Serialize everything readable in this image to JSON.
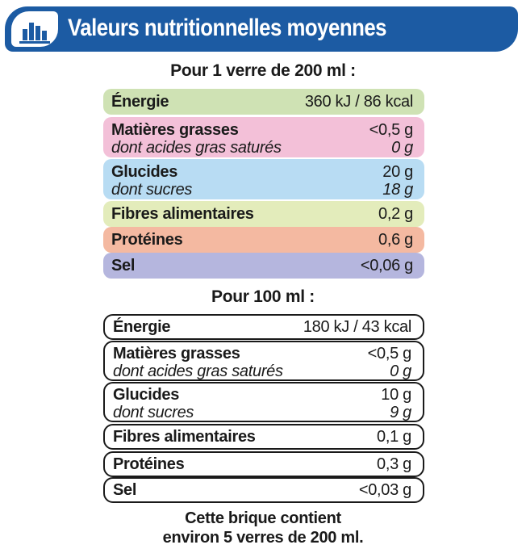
{
  "colors": {
    "header_blue": "#1c5ba3",
    "energie": "#cfe2b4",
    "matieres_grasses": "#f3c0d8",
    "glucides": "#b8dcf3",
    "fibres": "#e3ecbb",
    "proteines": "#f4b9a1",
    "sel": "#b5b6de"
  },
  "header": {
    "icon": "bar-chart-icon",
    "title": "Valeurs nutritionnelles moyennes"
  },
  "per_glass": {
    "title": "Pour 1 verre de 200 ml :",
    "rows": [
      {
        "label": "Énergie",
        "value": "360 kJ / 86 kcal"
      },
      {
        "label": "Matières grasses",
        "value": "<0,5 g",
        "sublabel": "dont acides gras saturés",
        "subvalue": "0 g"
      },
      {
        "label": "Glucides",
        "value": "20 g",
        "sublabel": "dont sucres",
        "subvalue": "18 g"
      },
      {
        "label": "Fibres alimentaires",
        "value": "0,2 g"
      },
      {
        "label": "Protéines",
        "value": "0,6 g"
      },
      {
        "label": "Sel",
        "value": "<0,06 g"
      }
    ]
  },
  "per_100ml": {
    "title": "Pour 100 ml :",
    "rows": [
      {
        "label": "Énergie",
        "value": "180 kJ / 43 kcal"
      },
      {
        "label": "Matières grasses",
        "value": "<0,5 g",
        "sublabel": "dont acides gras saturés",
        "subvalue": "0 g"
      },
      {
        "label": "Glucides",
        "value": "10 g",
        "sublabel": "dont sucres",
        "subvalue": "9 g"
      },
      {
        "label": "Fibres alimentaires",
        "value": "0,1 g"
      },
      {
        "label": "Protéines",
        "value": "0,3 g"
      },
      {
        "label": "Sel",
        "value": "<0,03 g"
      }
    ]
  },
  "footer": {
    "line1": "Cette brique contient",
    "line2": "environ 5 verres de 200 ml."
  }
}
